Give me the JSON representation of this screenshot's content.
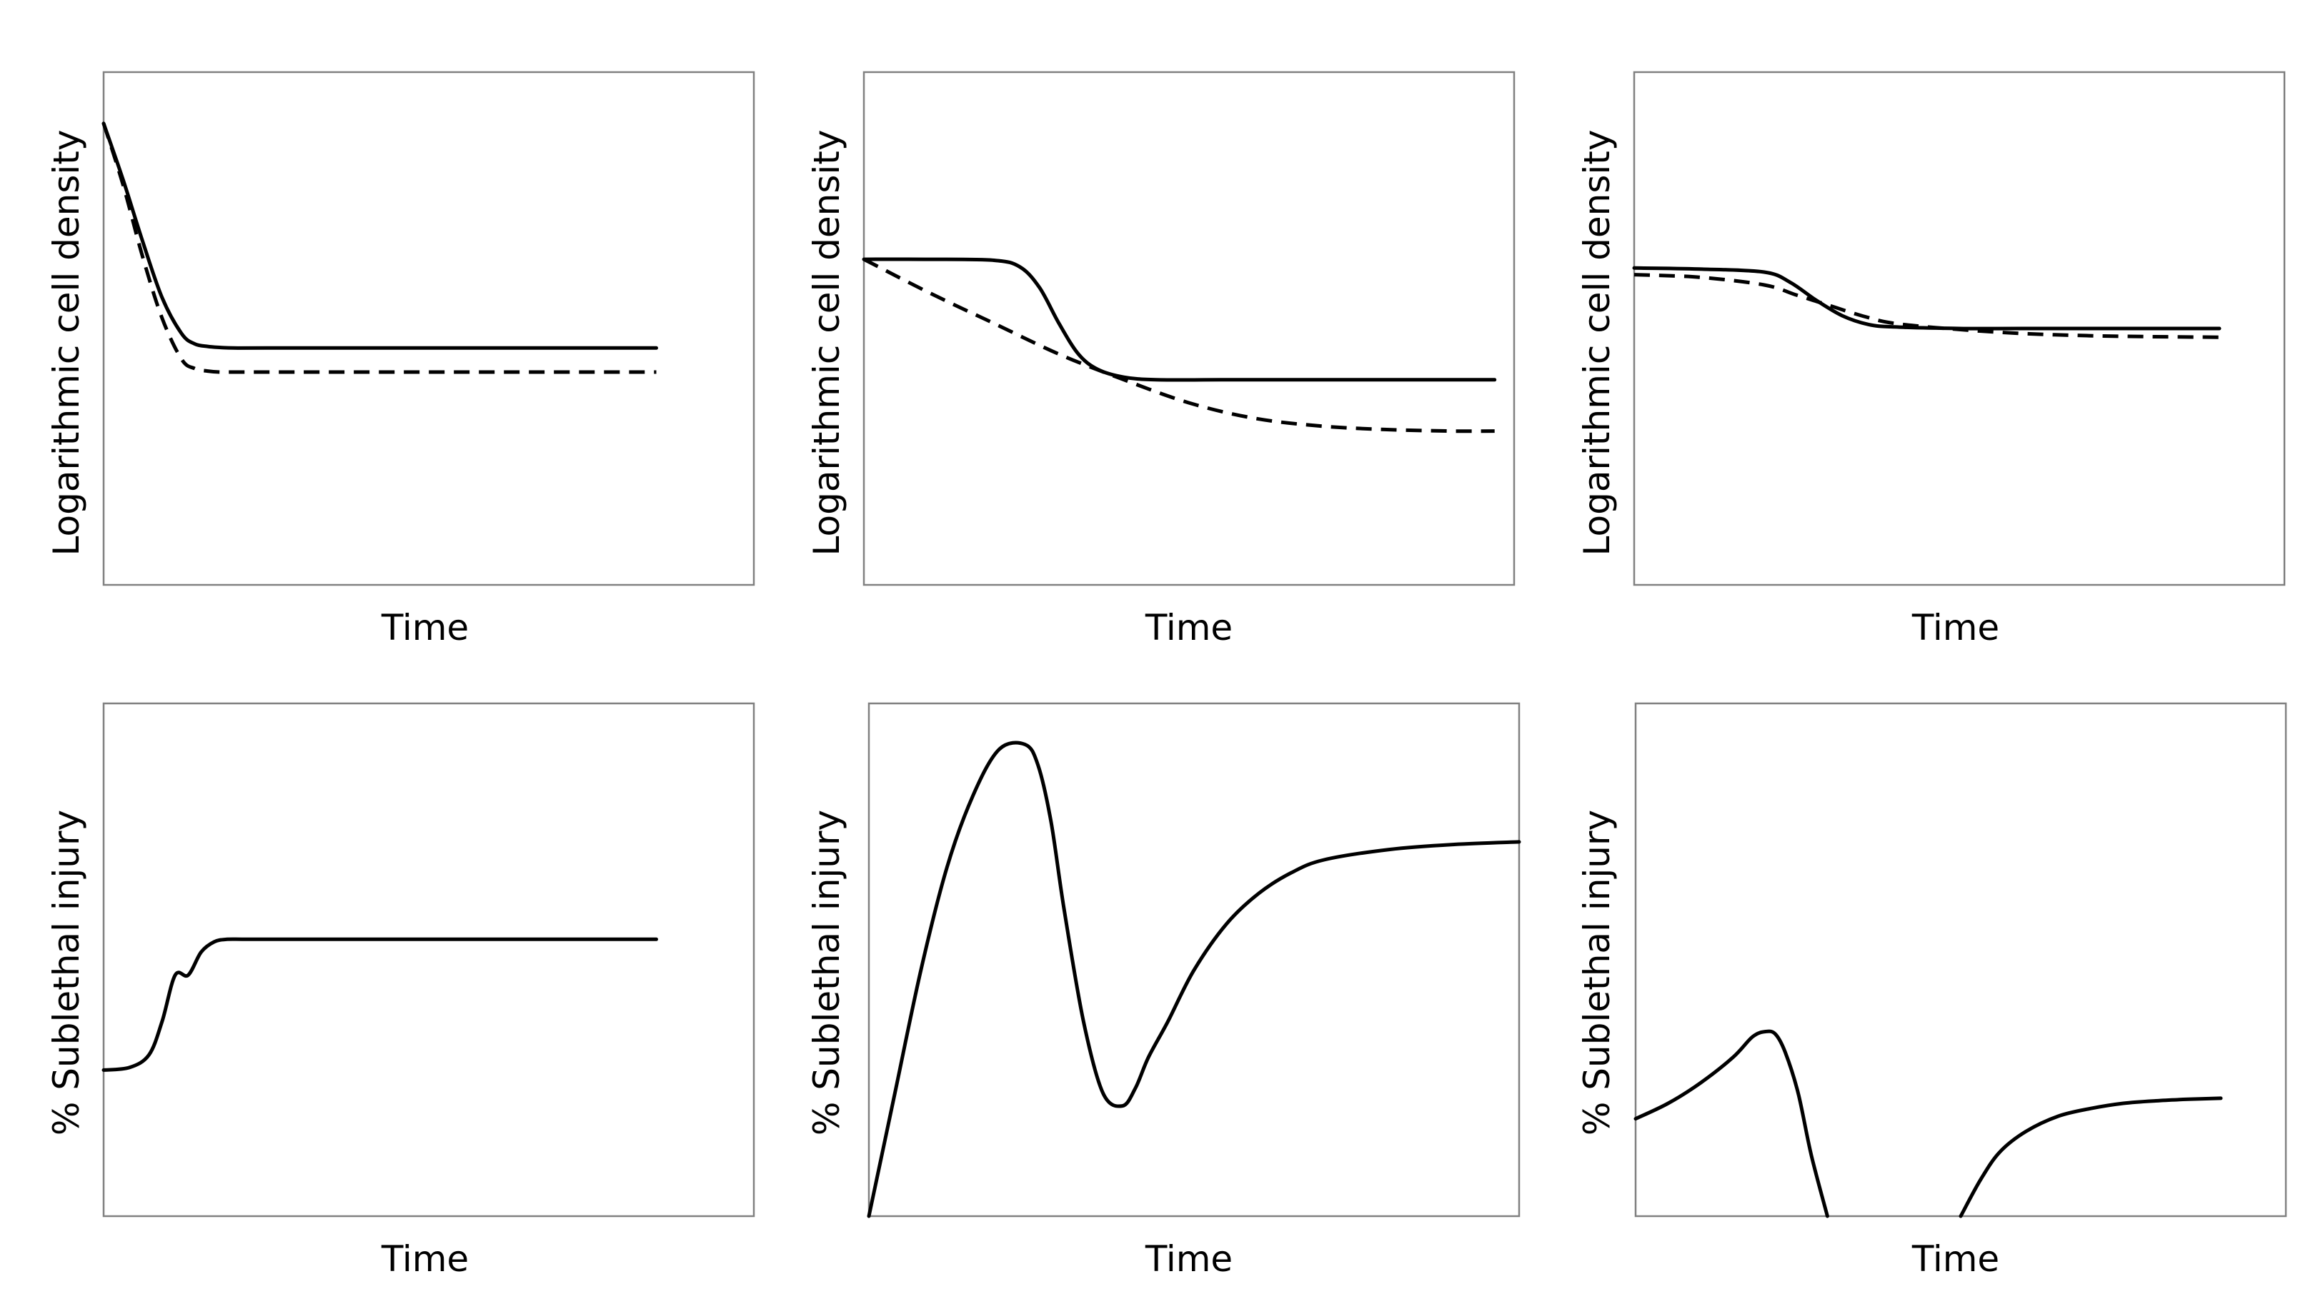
{
  "chart_data": [
    {
      "type": "line",
      "panel": "top-left",
      "xlabel": "Time",
      "ylabel": "Logarithmic cell density",
      "xlim": [
        0,
        100
      ],
      "ylim": [
        0,
        100
      ],
      "series": [
        {
          "name": "solid",
          "style": "solid",
          "x": [
            0,
            3,
            6,
            9,
            12,
            14,
            16,
            18,
            20,
            25,
            40,
            60,
            85
          ],
          "y": [
            90,
            79,
            67,
            56,
            49,
            47,
            46.5,
            46.3,
            46.2,
            46.2,
            46.2,
            46.2,
            46.2
          ]
        },
        {
          "name": "dashed",
          "style": "dashed",
          "x": [
            0,
            3,
            6,
            9,
            12,
            14,
            16,
            18,
            20,
            25,
            40,
            60,
            85
          ],
          "y": [
            90,
            78,
            64,
            52,
            44,
            42.2,
            41.7,
            41.5,
            41.5,
            41.5,
            41.5,
            41.5,
            41.5
          ]
        }
      ]
    },
    {
      "type": "line",
      "panel": "top-middle",
      "xlabel": "Time",
      "ylabel": "Logarithmic cell density",
      "xlim": [
        0,
        100
      ],
      "ylim": [
        0,
        100
      ],
      "series": [
        {
          "name": "solid",
          "style": "solid",
          "x": [
            0,
            10,
            20,
            24,
            27,
            30,
            33,
            36,
            40,
            45,
            55,
            70,
            97
          ],
          "y": [
            63.5,
            63.5,
            63.3,
            62,
            58,
            51,
            45,
            42,
            40.5,
            40,
            40,
            40,
            40
          ]
        },
        {
          "name": "dashed",
          "style": "dashed",
          "x": [
            0,
            10,
            20,
            30,
            40,
            50,
            60,
            70,
            80,
            90,
            97
          ],
          "y": [
            63.5,
            57,
            51,
            45,
            40,
            35.5,
            32.5,
            31,
            30.3,
            30,
            30
          ]
        }
      ]
    },
    {
      "type": "line",
      "panel": "top-right",
      "xlabel": "Time",
      "ylabel": "Logarithmic cell density",
      "xlim": [
        0,
        100
      ],
      "ylim": [
        0,
        100
      ],
      "series": [
        {
          "name": "solid",
          "style": "solid",
          "x": [
            0,
            10,
            20,
            24,
            28,
            32,
            36,
            40,
            50,
            60,
            90
          ],
          "y": [
            61.8,
            61.6,
            61,
            59,
            55.5,
            52.5,
            50.8,
            50.3,
            50,
            50,
            50
          ]
        },
        {
          "name": "dashed",
          "style": "dashed",
          "x": [
            0,
            10,
            20,
            25,
            30,
            35,
            40,
            50,
            60,
            70,
            80,
            90
          ],
          "y": [
            60.5,
            60,
            58.5,
            56.5,
            54.5,
            52.5,
            51,
            49.8,
            49,
            48.6,
            48.4,
            48.3
          ]
        }
      ]
    },
    {
      "type": "line",
      "panel": "bottom-left",
      "xlabel": "Time",
      "ylabel": "% Sublethal injury",
      "xlim": [
        0,
        100
      ],
      "ylim": [
        0,
        100
      ],
      "series": [
        {
          "name": "solid",
          "style": "solid",
          "x": [
            0,
            4,
            7,
            9,
            11,
            13,
            15,
            17,
            19,
            22,
            30,
            50,
            85
          ],
          "y": [
            28.5,
            29,
            31.5,
            38,
            47,
            47,
            51.5,
            53.5,
            54,
            54,
            54,
            54,
            54
          ]
        }
      ]
    },
    {
      "type": "line",
      "panel": "bottom-middle",
      "xlabel": "Time",
      "ylabel": "% Sublethal injury",
      "xlim": [
        0,
        100
      ],
      "ylim": [
        0,
        100
      ],
      "series": [
        {
          "name": "solid",
          "style": "solid",
          "x": [
            0,
            4,
            8,
            12,
            16,
            20,
            24,
            26,
            28,
            30,
            33,
            36,
            39,
            41,
            43,
            46,
            50,
            55,
            60,
            65,
            70,
            80,
            90,
            100
          ],
          "y": [
            0,
            24,
            48,
            68,
            82,
            91,
            92,
            88,
            77,
            60,
            38,
            24,
            21.5,
            25,
            31,
            38,
            48,
            57,
            63,
            67,
            69.5,
            71.5,
            72.5,
            73
          ]
        }
      ]
    },
    {
      "type": "line",
      "panel": "bottom-right",
      "xlabel": "Time",
      "ylabel": "% Sublethal injury",
      "xlim": [
        0,
        100
      ],
      "ylim": [
        0,
        100
      ],
      "series": [
        {
          "name": "solid-segment-1",
          "style": "solid",
          "x": [
            0,
            5,
            10,
            15,
            18,
            20,
            21.5,
            23,
            25,
            27,
            29.5
          ],
          "y": [
            19,
            22,
            26,
            31,
            35,
            36,
            35.5,
            32,
            24,
            12,
            0
          ]
        },
        {
          "name": "solid-segment-2",
          "style": "solid",
          "x": [
            50,
            53,
            56,
            60,
            65,
            70,
            75,
            80,
            85,
            90
          ],
          "y": [
            0,
            7,
            12.5,
            16.5,
            19.5,
            21,
            22,
            22.5,
            22.8,
            23
          ]
        }
      ]
    }
  ]
}
